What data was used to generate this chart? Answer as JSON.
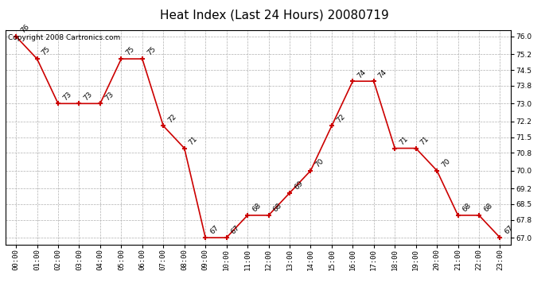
{
  "title": "Heat Index (Last 24 Hours) 20080719",
  "copyright": "Copyright 2008 Cartronics.com",
  "hours": [
    0,
    1,
    2,
    3,
    4,
    5,
    6,
    7,
    8,
    9,
    10,
    11,
    12,
    13,
    14,
    15,
    16,
    17,
    18,
    19,
    20,
    21,
    22,
    23
  ],
  "values": [
    76,
    75,
    73,
    73,
    73,
    75,
    75,
    72,
    71,
    67,
    67,
    68,
    68,
    69,
    70,
    72,
    74,
    74,
    71,
    71,
    70,
    68,
    68,
    67
  ],
  "x_labels": [
    "00:00",
    "01:00",
    "02:00",
    "03:00",
    "04:00",
    "05:00",
    "06:00",
    "07:00",
    "08:00",
    "09:00",
    "10:00",
    "11:00",
    "12:00",
    "13:00",
    "14:00",
    "15:00",
    "16:00",
    "17:00",
    "18:00",
    "19:00",
    "20:00",
    "21:00",
    "22:00",
    "23:00"
  ],
  "y_ticks": [
    67.0,
    67.8,
    68.5,
    69.2,
    70.0,
    70.8,
    71.5,
    72.2,
    73.0,
    73.8,
    74.5,
    75.2,
    76.0
  ],
  "ylim": [
    66.7,
    76.3
  ],
  "line_color": "#cc0000",
  "marker_color": "#cc0000",
  "bg_color": "#ffffff",
  "plot_bg_color": "#ffffff",
  "grid_color": "#b0b0b0",
  "title_fontsize": 11,
  "label_fontsize": 6.5,
  "tick_fontsize": 6.5,
  "copyright_fontsize": 6.5
}
